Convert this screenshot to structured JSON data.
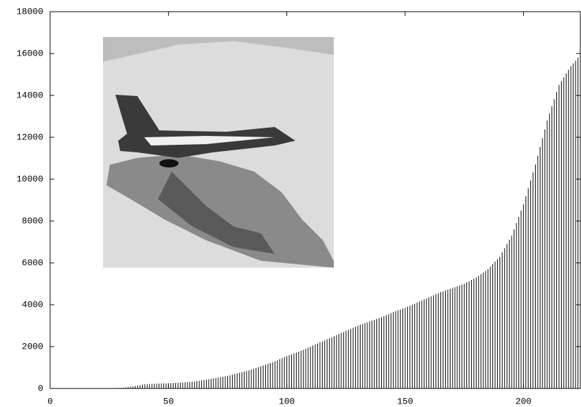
{
  "chart_data": {
    "type": "impulse",
    "color": "#000000",
    "xlim": [
      0,
      224
    ],
    "ylim": [
      0,
      18000
    ],
    "xticks": [
      0,
      50,
      100,
      150,
      200
    ],
    "yticks": [
      0,
      2000,
      4000,
      6000,
      8000,
      10000,
      12000,
      14000,
      16000,
      18000
    ],
    "x": [
      0,
      1,
      2,
      3,
      4,
      5,
      6,
      7,
      8,
      9,
      10,
      11,
      12,
      13,
      14,
      15,
      16,
      17,
      18,
      19,
      20,
      21,
      22,
      23,
      24,
      25,
      26,
      27,
      28,
      29,
      30,
      31,
      32,
      33,
      34,
      35,
      36,
      37,
      38,
      39,
      40,
      41,
      42,
      43,
      44,
      45,
      46,
      47,
      48,
      49,
      50,
      51,
      52,
      53,
      54,
      55,
      56,
      57,
      58,
      59,
      60,
      61,
      62,
      63,
      64,
      65,
      66,
      67,
      68,
      69,
      70,
      71,
      72,
      73,
      74,
      75,
      76,
      77,
      78,
      79,
      80,
      81,
      82,
      83,
      84,
      85,
      86,
      87,
      88,
      89,
      90,
      91,
      92,
      93,
      94,
      95,
      96,
      97,
      98,
      99,
      100,
      101,
      102,
      103,
      104,
      105,
      106,
      107,
      108,
      109,
      110,
      111,
      112,
      113,
      114,
      115,
      116,
      117,
      118,
      119,
      120,
      121,
      122,
      123,
      124,
      125,
      126,
      127,
      128,
      129,
      130,
      131,
      132,
      133,
      134,
      135,
      136,
      137,
      138,
      139,
      140,
      141,
      142,
      143,
      144,
      145,
      146,
      147,
      148,
      149,
      150,
      151,
      152,
      153,
      154,
      155,
      156,
      157,
      158,
      159,
      160,
      161,
      162,
      163,
      164,
      165,
      166,
      167,
      168,
      169,
      170,
      171,
      172,
      173,
      174,
      175,
      176,
      177,
      178,
      179,
      180,
      181,
      182,
      183,
      184,
      185,
      186,
      187,
      188,
      189,
      190,
      191,
      192,
      193,
      194,
      195,
      196,
      197,
      198,
      199,
      200,
      201,
      202,
      203,
      204,
      205,
      206,
      207,
      208,
      209,
      210,
      211,
      212,
      213,
      214,
      215,
      216,
      217,
      218,
      219,
      220,
      221,
      222,
      223
    ],
    "values": [
      0,
      0,
      0,
      0,
      0,
      0,
      0,
      0,
      0,
      0,
      0,
      0,
      0,
      0,
      0,
      0,
      0,
      0,
      0,
      0,
      0,
      0,
      0,
      0,
      0,
      5,
      8,
      12,
      17,
      23,
      30,
      40,
      55,
      70,
      85,
      100,
      120,
      140,
      160,
      180,
      200,
      206,
      212,
      218,
      224,
      230,
      234,
      238,
      242,
      246,
      250,
      256,
      262,
      268,
      274,
      280,
      288,
      296,
      304,
      312,
      320,
      336,
      352,
      368,
      384,
      400,
      420,
      440,
      460,
      480,
      500,
      520,
      540,
      560,
      580,
      600,
      630,
      660,
      690,
      720,
      750,
      780,
      810,
      840,
      870,
      900,
      940,
      980,
      1020,
      1060,
      1100,
      1140,
      1180,
      1220,
      1260,
      1300,
      1350,
      1400,
      1450,
      1500,
      1550,
      1590,
      1630,
      1670,
      1710,
      1750,
      1800,
      1850,
      1900,
      1950,
      2000,
      2050,
      2100,
      2150,
      2200,
      2250,
      2300,
      2350,
      2400,
      2450,
      2500,
      2550,
      2600,
      2650,
      2700,
      2750,
      2800,
      2850,
      2900,
      2950,
      3000,
      3040,
      3080,
      3120,
      3160,
      3200,
      3240,
      3280,
      3320,
      3360,
      3400,
      3450,
      3500,
      3550,
      3600,
      3650,
      3690,
      3730,
      3770,
      3810,
      3850,
      3900,
      3950,
      4000,
      4050,
      4100,
      4150,
      4200,
      4250,
      4300,
      4350,
      4400,
      4450,
      4500,
      4550,
      4600,
      4640,
      4680,
      4720,
      4760,
      4800,
      4840,
      4880,
      4920,
      4960,
      5000,
      5060,
      5120,
      5180,
      5240,
      5300,
      5380,
      5460,
      5540,
      5620,
      5700,
      5820,
      5940,
      6060,
      6180,
      6300,
      6500,
      6700,
      6900,
      7100,
      7300,
      7600,
      7900,
      8200,
      8500,
      8800,
      9180,
      9560,
      9940,
      10320,
      10700,
      11120,
      11540,
      11960,
      12380,
      12800,
      13140,
      13480,
      13820,
      14160,
      14500,
      14680,
      14860,
      15040,
      15220,
      15400,
      15530,
      15660,
      15800
    ]
  }
}
